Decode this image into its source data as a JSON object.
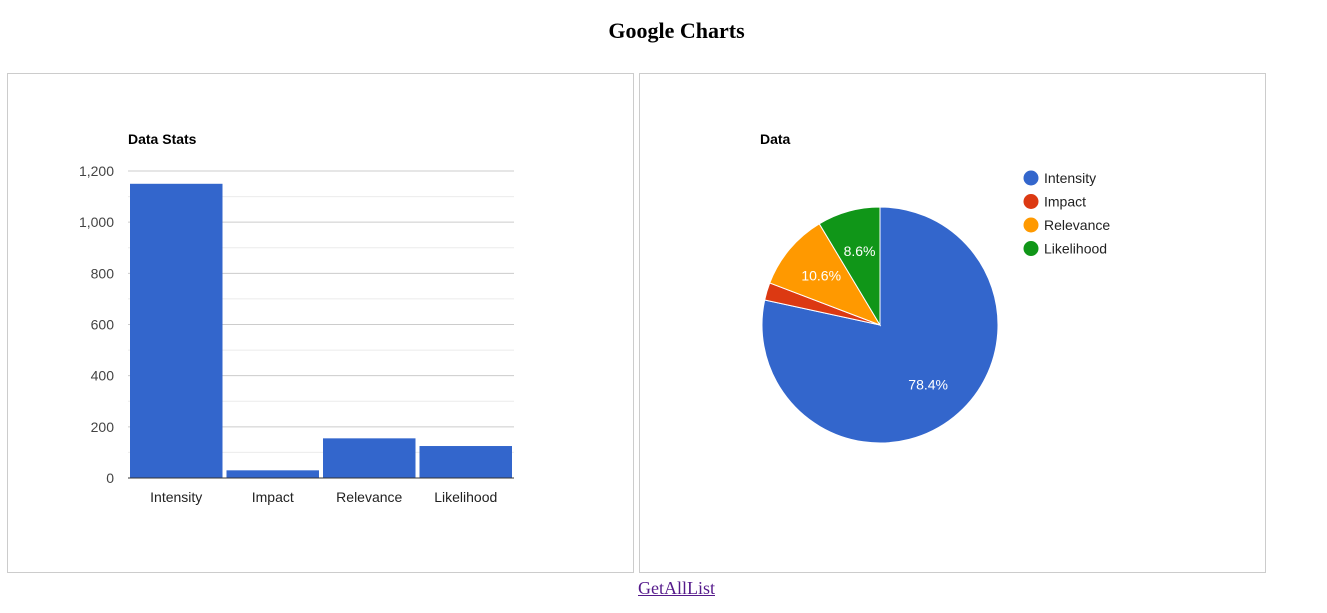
{
  "page": {
    "title": "Google Charts",
    "link_label": "GetAllList"
  },
  "colors": {
    "blue": "#3366cc",
    "red": "#dc3912",
    "orange": "#ff9900",
    "green": "#109618",
    "link": "#551a8b"
  },
  "chart_data": [
    {
      "type": "bar",
      "title": "Data Stats",
      "categories": [
        "Intensity",
        "Impact",
        "Relevance",
        "Likelihood"
      ],
      "values": [
        1150,
        30,
        155,
        125
      ],
      "ylim": [
        0,
        1200
      ],
      "yticks": [
        0,
        200,
        400,
        600,
        800,
        1000,
        1200
      ],
      "ytick_labels": [
        "0",
        "200",
        "400",
        "600",
        "800",
        "1,000",
        "1,200"
      ],
      "grid": true,
      "legend": "none"
    },
    {
      "type": "pie",
      "title": "Data",
      "labels": [
        "Intensity",
        "Impact",
        "Relevance",
        "Likelihood"
      ],
      "values": [
        78.4,
        2.4,
        10.6,
        8.6
      ],
      "slice_labels": [
        "78.4%",
        "",
        "10.6%",
        "8.6%"
      ],
      "legend": "right"
    }
  ]
}
